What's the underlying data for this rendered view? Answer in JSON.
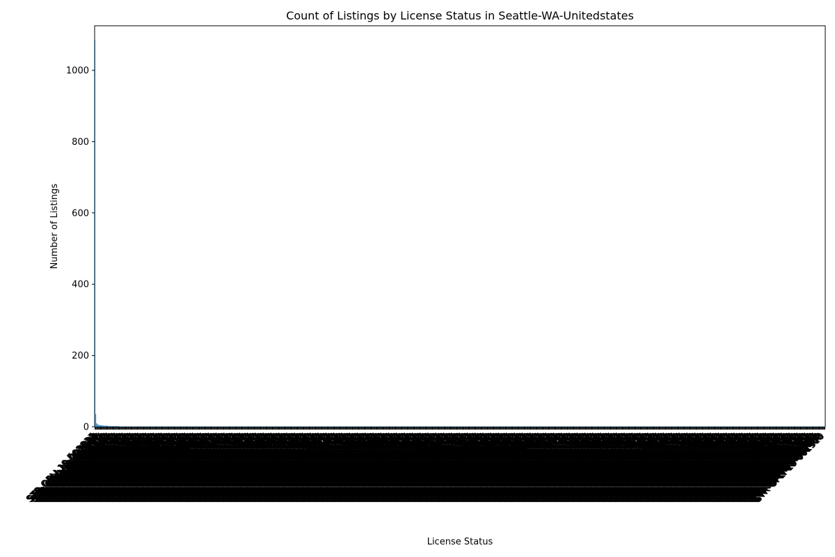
{
  "chart_data": {
    "type": "bar",
    "title": "Count of Listings by License Status in Seattle-WA-Unitedstates",
    "xlabel": "License Status",
    "ylabel": "Number of Listings",
    "ylim": [
      0,
      1125
    ],
    "yticks": [
      0,
      200,
      400,
      600,
      800,
      1000
    ],
    "grid": false,
    "legend": "none",
    "bar_color": "#1f77b4",
    "categories": [
      "Exempt",
      "STR-OPLI-19-002837",
      "STR-OPLI-19-003039",
      "STR-OPLI-19-002622",
      "STR-OPLI-19-002182",
      "7003/6",
      "STR-OPLI-19-002419",
      "STR-OPLI-19-003111",
      "STR-OPLI-19-002515",
      "STR-OPLI-19-002996",
      "STR-OPLI-19-002871"
    ],
    "values": [
      1085,
      36,
      10,
      8,
      6,
      5,
      5,
      4,
      4,
      4,
      4
    ],
    "tail_values": [
      3,
      3,
      3,
      3,
      3,
      3,
      2,
      2,
      2,
      2,
      2,
      2,
      2,
      2,
      2,
      2,
      2,
      2,
      2,
      2
    ],
    "tail_single_count": 900,
    "tail_single_value": 1
  }
}
